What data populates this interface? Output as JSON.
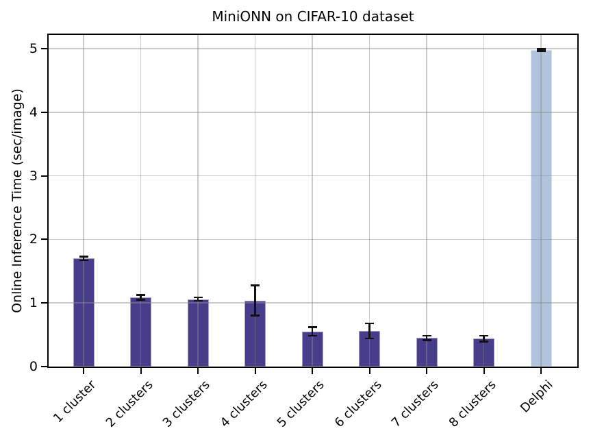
{
  "chart_data": {
    "type": "bar",
    "title": "MiniONN on CIFAR-10 dataset",
    "xlabel": "",
    "ylabel": "Online Inference Time (sec/image)",
    "categories": [
      "1 cluster",
      "2 clusters",
      "3 clusters",
      "4 clusters",
      "5 clusters",
      "6 clusters",
      "7 clusters",
      "8 clusters",
      "Delphi"
    ],
    "values": [
      1.7,
      1.09,
      1.06,
      1.04,
      0.55,
      0.56,
      0.45,
      0.44,
      4.98
    ],
    "errors": [
      0.03,
      0.04,
      0.03,
      0.24,
      0.07,
      0.12,
      0.04,
      0.05,
      0.02
    ],
    "colors": [
      "#483d8b",
      "#483d8b",
      "#483d8b",
      "#483d8b",
      "#483d8b",
      "#483d8b",
      "#483d8b",
      "#483d8b",
      "#b0c4de"
    ],
    "yticks": [
      0,
      1,
      2,
      3,
      4,
      5
    ],
    "ylim": [
      0,
      5.22
    ],
    "grid": true,
    "legend": "none",
    "accent_colors": {
      "cluster_bar": "#483d8b",
      "delphi_bar": "#b0c4de",
      "error_bar": "#111111",
      "grid": "#8c8c8c",
      "spine": "#000000"
    }
  }
}
